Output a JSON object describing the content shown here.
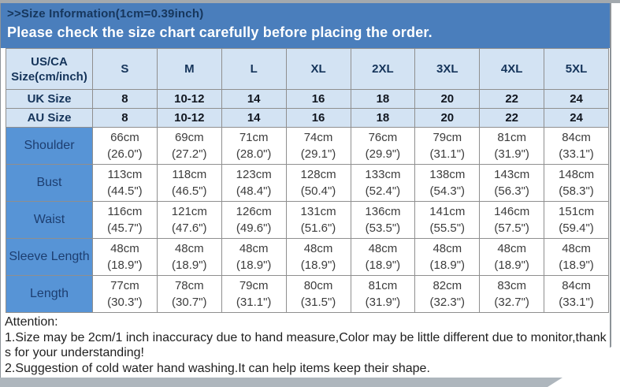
{
  "header": {
    "size_info_title": ">>Size Information(1cm=0.39inch)",
    "notice": "Please check the size chart carefully before placing the order."
  },
  "table": {
    "corner_header": "US/CA Size(cm/inch)",
    "size_columns": [
      "S",
      "M",
      "L",
      "XL",
      "2XL",
      "3XL",
      "4XL",
      "5XL"
    ],
    "size_rows": [
      {
        "label": "UK Size",
        "values": [
          "8",
          "10-12",
          "14",
          "16",
          "18",
          "20",
          "22",
          "24"
        ]
      },
      {
        "label": "AU Size",
        "values": [
          "8",
          "10-12",
          "14",
          "16",
          "18",
          "20",
          "22",
          "24"
        ]
      }
    ],
    "measurement_rows": [
      {
        "label": "Shoulder",
        "cells": [
          "66cm\n(26.0\")",
          "69cm\n(27.2\")",
          "71cm\n(28.0\")",
          "74cm\n(29.1\")",
          "76cm\n(29.9\")",
          "79cm\n(31.1\")",
          "81cm\n(31.9\")",
          "84cm\n(33.1\")"
        ]
      },
      {
        "label": "Bust",
        "cells": [
          "113cm\n(44.5\")",
          "118cm\n(46.5\")",
          "123cm\n(48.4\")",
          "128cm\n(50.4\")",
          "133cm\n(52.4\")",
          "138cm\n(54.3\")",
          "143cm\n(56.3\")",
          "148cm\n(58.3\")"
        ]
      },
      {
        "label": "Waist",
        "cells": [
          "116cm\n(45.7\")",
          "121cm\n(47.6\")",
          "126cm\n(49.6\")",
          "131cm\n(51.6\")",
          "136cm\n(53.5\")",
          "141cm\n(55.5\")",
          "146cm\n(57.5\")",
          "151cm\n(59.4\")"
        ]
      },
      {
        "label": "Sleeve Length",
        "cells": [
          "48cm\n(18.9\")",
          "48cm\n(18.9\")",
          "48cm\n(18.9\")",
          "48cm\n(18.9\")",
          "48cm\n(18.9\")",
          "48cm\n(18.9\")",
          "48cm\n(18.9\")",
          "48cm\n(18.9\")"
        ]
      },
      {
        "label": "Length",
        "cells": [
          "77cm\n(30.3\")",
          "78cm\n(30.7\")",
          "79cm\n(31.1\")",
          "80cm\n(31.5\")",
          "81cm\n(31.9\")",
          "82cm\n(32.3\")",
          "83cm\n(32.7\")",
          "84cm\n(33.1\")"
        ]
      }
    ]
  },
  "footer": {
    "attention_title": "Attention:",
    "notes": [
      "1.Size may be 2cm/1 inch inaccuracy due to hand measure,Color may be little different due to monitor,thanks for your understanding!",
      "2.Suggestion of cold water hand washing.It can help items keep their shape."
    ]
  },
  "colors": {
    "banner_blue": "#4a7ebc",
    "banner_title_navy": "#16365c",
    "light_blue_cell": "#d3e3f3",
    "label_blue_cell": "#5794d6",
    "label_text_navy": "#1d3e70",
    "data_text_gray": "#3c3c3c",
    "grid_border_gray": "#8f8f8f"
  }
}
